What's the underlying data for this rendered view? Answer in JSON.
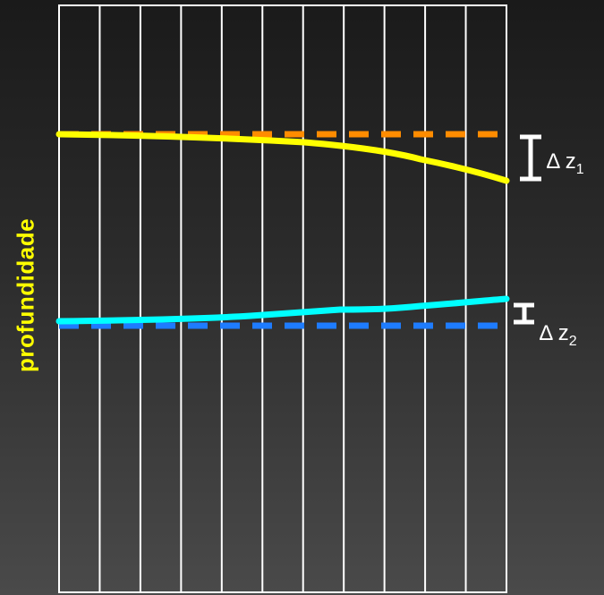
{
  "diagram": {
    "ylabel": "profundidade",
    "columns": 11,
    "curves": [
      {
        "name": "upper-solid",
        "color": "#ffff00"
      },
      {
        "name": "lower-solid",
        "color": "#00ffff"
      }
    ],
    "reference_lines": [
      {
        "name": "upper-dashed",
        "color": "#ff8c00"
      },
      {
        "name": "lower-dashed",
        "color": "#1e7cff"
      }
    ],
    "annotations": [
      {
        "delta": "∆",
        "var": "z",
        "sub": "1"
      },
      {
        "delta": "∆",
        "var": "z",
        "sub": "2"
      }
    ]
  }
}
